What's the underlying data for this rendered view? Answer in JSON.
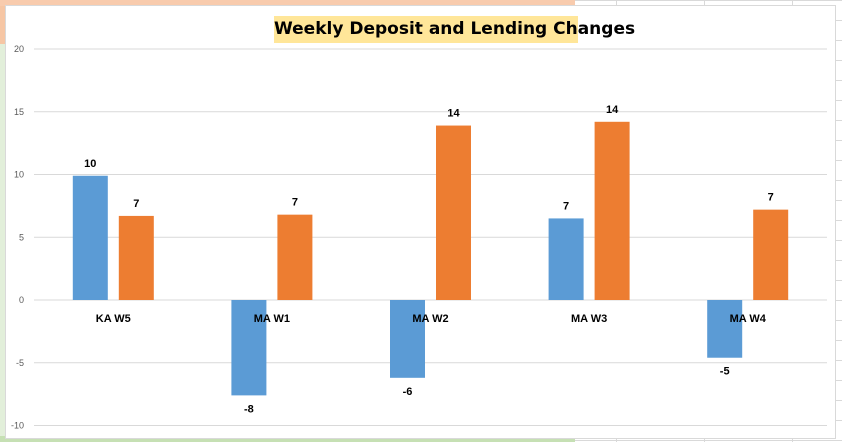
{
  "chart_data": {
    "type": "bar",
    "title": "Weekly Deposit and Lending Changes",
    "categories": [
      "KA W5",
      "MA W1",
      "MA W2",
      "MA W3",
      "MA W4"
    ],
    "series": [
      {
        "values": [
          9.9,
          -7.6,
          -6.2,
          6.5,
          -4.6
        ],
        "labels": [
          "10",
          "-8",
          "-6",
          "7",
          "-5"
        ],
        "color": "#5b9bd5"
      },
      {
        "values": [
          6.7,
          6.8,
          13.9,
          14.2,
          7.2
        ],
        "labels": [
          "7",
          "7",
          "14",
          "14",
          "7"
        ],
        "color": "#ed7d31"
      }
    ],
    "yticks": [
      -10,
      -5,
      0,
      5,
      10,
      15,
      20
    ],
    "ylim": [
      -10,
      20
    ],
    "grid": true,
    "legend": "none"
  }
}
